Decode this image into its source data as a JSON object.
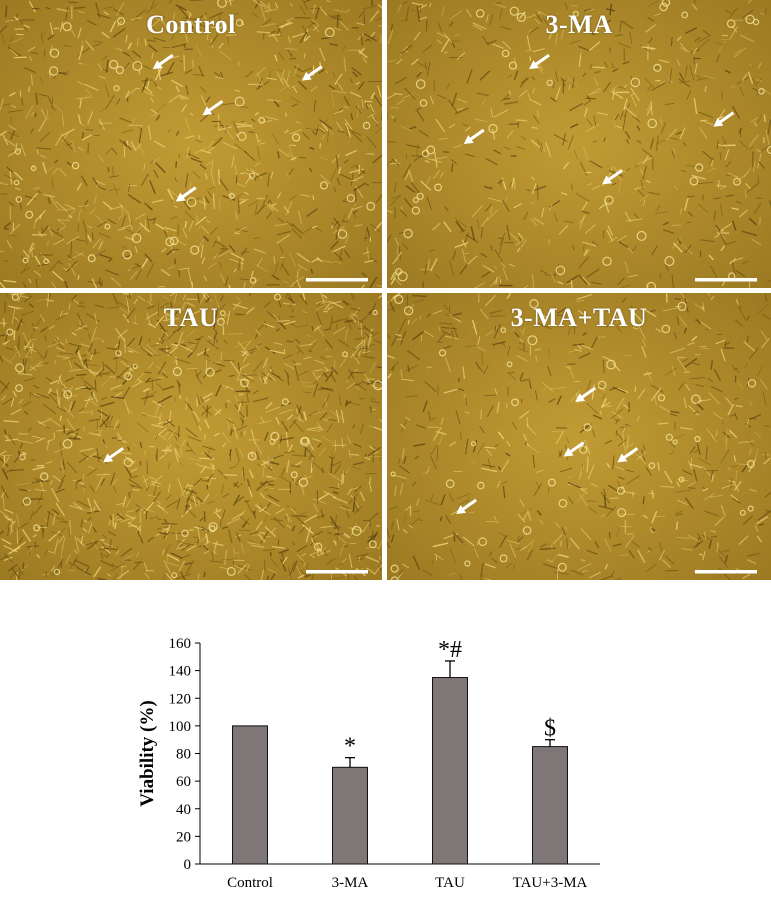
{
  "panels": [
    {
      "label": "Control",
      "arrow_count": 4
    },
    {
      "label": "3-MA",
      "arrow_count": 4
    },
    {
      "label": "TAU",
      "arrow_count": 1
    },
    {
      "label": "3-MA+TAU",
      "arrow_count": 4
    }
  ],
  "colors": {
    "micrograph_bg": "#b08d2a",
    "cell": "#f0d77a",
    "arrow": "#ffffff",
    "scale_bar": "#ffffff",
    "bar_fill": "#7f7777",
    "bar_stroke": "#111111"
  },
  "chart_data": {
    "type": "bar",
    "categories": [
      "Control",
      "3-MA",
      "TAU",
      "TAU+3-MA"
    ],
    "values": [
      100,
      70,
      135,
      85
    ],
    "errors": [
      0,
      7,
      12,
      5
    ],
    "annotations": [
      "",
      "*",
      "*#",
      "$"
    ],
    "ylabel": "Viability (%)",
    "xlabel": "",
    "ylim": [
      0,
      160
    ],
    "yticks": [
      0,
      20,
      40,
      60,
      80,
      100,
      120,
      140,
      160
    ],
    "grid": false,
    "legend": "none"
  }
}
